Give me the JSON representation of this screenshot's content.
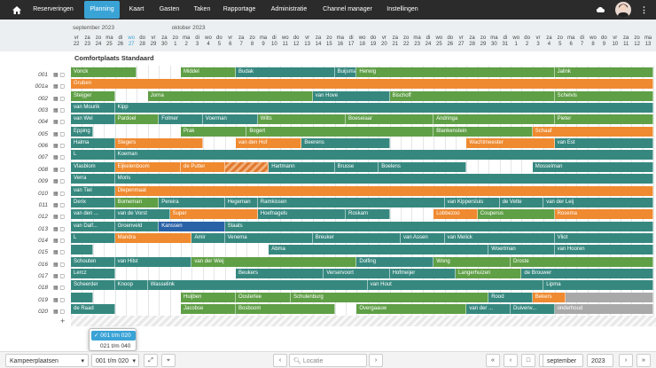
{
  "nav": {
    "items": [
      "Reserveringen",
      "Planning",
      "Kaart",
      "Gasten",
      "Taken",
      "Rapportage",
      "Administratie",
      "Channel manager",
      "Instellingen"
    ],
    "active": "Planning"
  },
  "header": {
    "months": [
      "september 2023",
      "oktober 2023"
    ],
    "days": [
      [
        "vr",
        "22"
      ],
      [
        "za",
        "23"
      ],
      [
        "zo",
        "24"
      ],
      [
        "ma",
        "25"
      ],
      [
        "di",
        "26"
      ],
      [
        "wo",
        "27"
      ],
      [
        "do",
        "28"
      ],
      [
        "vr",
        "29"
      ],
      [
        "za",
        "30"
      ],
      [
        "zo",
        "1"
      ],
      [
        "ma",
        "2"
      ],
      [
        "di",
        "3"
      ],
      [
        "wo",
        "4"
      ],
      [
        "do",
        "5"
      ],
      [
        "vr",
        "6"
      ],
      [
        "za",
        "7"
      ],
      [
        "zo",
        "8"
      ],
      [
        "ma",
        "9"
      ],
      [
        "di",
        "10"
      ],
      [
        "wo",
        "11"
      ],
      [
        "do",
        "12"
      ],
      [
        "vr",
        "13"
      ],
      [
        "za",
        "14"
      ],
      [
        "zo",
        "15"
      ],
      [
        "ma",
        "16"
      ],
      [
        "di",
        "17"
      ],
      [
        "wo",
        "18"
      ],
      [
        "do",
        "19"
      ],
      [
        "vr",
        "20"
      ],
      [
        "za",
        "21"
      ],
      [
        "zo",
        "22"
      ],
      [
        "ma",
        "23"
      ],
      [
        "di",
        "24"
      ],
      [
        "wo",
        "25"
      ],
      [
        "do",
        "26"
      ],
      [
        "vr",
        "27"
      ],
      [
        "za",
        "28"
      ],
      [
        "zo",
        "29"
      ],
      [
        "ma",
        "30"
      ],
      [
        "di",
        "31"
      ],
      [
        "wo",
        "1"
      ],
      [
        "do",
        "2"
      ],
      [
        "vr",
        "3"
      ],
      [
        "za",
        "4"
      ],
      [
        "zo",
        "5"
      ],
      [
        "ma",
        "6"
      ],
      [
        "di",
        "7"
      ],
      [
        "wo",
        "8"
      ],
      [
        "do",
        "9"
      ],
      [
        "vr",
        "10"
      ],
      [
        "za",
        "11"
      ],
      [
        "zo",
        "12"
      ],
      [
        "ma",
        "13"
      ]
    ]
  },
  "section_title": "Comfortplaats Standaard",
  "rows": [
    "001",
    "001a",
    "002",
    "003",
    "004",
    "005",
    "006",
    "007",
    "008",
    "009",
    "010",
    "011",
    "012",
    "013",
    "014",
    "015",
    "016",
    "017",
    "018",
    "019",
    "020"
  ],
  "bookings": [
    {
      "r": 0,
      "s": 0,
      "e": 6,
      "t": "Vonck",
      "c": "green"
    },
    {
      "r": 0,
      "s": 10,
      "e": 15,
      "t": "Middel",
      "c": "green"
    },
    {
      "r": 0,
      "s": 15,
      "e": 24,
      "t": "Budak",
      "c": "teal"
    },
    {
      "r": 0,
      "s": 24,
      "e": 26,
      "t": "Buijsman",
      "c": "teal"
    },
    {
      "r": 0,
      "s": 26,
      "e": 44,
      "t": "Herwig",
      "c": "green"
    },
    {
      "r": 0,
      "s": 44,
      "e": 53,
      "t": "Jalink",
      "c": "green"
    },
    {
      "r": 1,
      "s": 0,
      "e": 53,
      "t": "Gruben",
      "c": "orange"
    },
    {
      "r": 2,
      "s": 0,
      "e": 4,
      "t": "Steijger",
      "c": "green"
    },
    {
      "r": 2,
      "s": 7,
      "e": 22,
      "t": "Jorna",
      "c": "green"
    },
    {
      "r": 2,
      "s": 22,
      "e": 29,
      "t": "van Hove",
      "c": "teal"
    },
    {
      "r": 2,
      "s": 29,
      "e": 44,
      "t": "Bischoff",
      "c": "green"
    },
    {
      "r": 2,
      "s": 44,
      "e": 53,
      "t": "Schelvis",
      "c": "green"
    },
    {
      "r": 3,
      "s": 0,
      "e": 4,
      "t": "van Mourik",
      "c": "teal"
    },
    {
      "r": 3,
      "s": 4,
      "e": 53,
      "t": "Kipp",
      "c": "teal"
    },
    {
      "r": 4,
      "s": 0,
      "e": 4,
      "t": "van Wel",
      "c": "teal"
    },
    {
      "r": 4,
      "s": 4,
      "e": 8,
      "t": "Pardoel",
      "c": "green"
    },
    {
      "r": 4,
      "s": 8,
      "e": 12,
      "t": "Folmer",
      "c": "teal"
    },
    {
      "r": 4,
      "s": 12,
      "e": 17,
      "t": "Voerman",
      "c": "teal"
    },
    {
      "r": 4,
      "s": 17,
      "e": 25,
      "t": "Wilts",
      "c": "green"
    },
    {
      "r": 4,
      "s": 25,
      "e": 33,
      "t": "Boeseiaar",
      "c": "green"
    },
    {
      "r": 4,
      "s": 33,
      "e": 44,
      "t": "Andringa",
      "c": "green"
    },
    {
      "r": 4,
      "s": 44,
      "e": 53,
      "t": "Pieter",
      "c": "green"
    },
    {
      "r": 5,
      "s": 0,
      "e": 2,
      "t": "Epping",
      "c": "teal"
    },
    {
      "r": 5,
      "s": 10,
      "e": 16,
      "t": "Prak",
      "c": "green"
    },
    {
      "r": 5,
      "s": 16,
      "e": 33,
      "t": "Bogert",
      "c": "green"
    },
    {
      "r": 5,
      "s": 33,
      "e": 42,
      "t": "Blankenstein",
      "c": "green"
    },
    {
      "r": 5,
      "s": 42,
      "e": 53,
      "t": "Schaaf",
      "c": "orange"
    },
    {
      "r": 6,
      "s": 0,
      "e": 4,
      "t": "Halma",
      "c": "teal"
    },
    {
      "r": 6,
      "s": 4,
      "e": 12,
      "t": "Stegers",
      "c": "orange"
    },
    {
      "r": 6,
      "s": 15,
      "e": 21,
      "t": "van den Hof",
      "c": "orange"
    },
    {
      "r": 6,
      "s": 21,
      "e": 29,
      "t": "Beerens",
      "c": "teal"
    },
    {
      "r": 6,
      "s": 36,
      "e": 44,
      "t": "Wachtmeester",
      "c": "orange"
    },
    {
      "r": 6,
      "s": 44,
      "e": 53,
      "t": "van Est",
      "c": "teal"
    },
    {
      "r": 7,
      "s": 0,
      "e": 4,
      "t": "L",
      "c": "teal"
    },
    {
      "r": 7,
      "s": 4,
      "e": 53,
      "t": "Koeman",
      "c": "teal"
    },
    {
      "r": 8,
      "s": 0,
      "e": 4,
      "t": "Vlasblom",
      "c": "teal"
    },
    {
      "r": 8,
      "s": 4,
      "e": 10,
      "t": "Eijkelenboom",
      "c": "orange"
    },
    {
      "r": 8,
      "s": 10,
      "e": 14,
      "t": "de Putter",
      "c": "orange"
    },
    {
      "r": 8,
      "s": 14,
      "e": 18,
      "t": "",
      "c": "hatch"
    },
    {
      "r": 8,
      "s": 18,
      "e": 24,
      "t": "Hartmann",
      "c": "teal"
    },
    {
      "r": 8,
      "s": 24,
      "e": 28,
      "t": "Brusse",
      "c": "teal"
    },
    {
      "r": 8,
      "s": 28,
      "e": 36,
      "t": "Boelens",
      "c": "teal"
    },
    {
      "r": 8,
      "s": 42,
      "e": 53,
      "t": "Mosselman",
      "c": "teal"
    },
    {
      "r": 9,
      "s": 0,
      "e": 4,
      "t": "Verra",
      "c": "teal"
    },
    {
      "r": 9,
      "s": 4,
      "e": 53,
      "t": "Moris",
      "c": "teal"
    },
    {
      "r": 10,
      "s": 0,
      "e": 4,
      "t": "van Tiel",
      "c": "teal"
    },
    {
      "r": 10,
      "s": 4,
      "e": 53,
      "t": "Diepenmaat",
      "c": "orange"
    },
    {
      "r": 11,
      "s": 0,
      "e": 4,
      "t": "Derix",
      "c": "teal"
    },
    {
      "r": 11,
      "s": 4,
      "e": 8,
      "t": "Bomeman",
      "c": "green"
    },
    {
      "r": 11,
      "s": 8,
      "e": 14,
      "t": "Pereira",
      "c": "teal"
    },
    {
      "r": 11,
      "s": 14,
      "e": 17,
      "t": "Hegeman",
      "c": "teal"
    },
    {
      "r": 11,
      "s": 17,
      "e": 34,
      "t": "Ramkissen",
      "c": "teal"
    },
    {
      "r": 11,
      "s": 34,
      "e": 39,
      "t": "van Kippersluis",
      "c": "teal"
    },
    {
      "r": 11,
      "s": 39,
      "e": 43,
      "t": "de Vette",
      "c": "teal"
    },
    {
      "r": 11,
      "s": 43,
      "e": 53,
      "t": "van der Leij",
      "c": "teal"
    },
    {
      "r": 12,
      "s": 0,
      "e": 4,
      "t": "van den ...",
      "c": "teal"
    },
    {
      "r": 12,
      "s": 4,
      "e": 9,
      "t": "van de Vorst",
      "c": "teal"
    },
    {
      "r": 12,
      "s": 9,
      "e": 17,
      "t": "Super",
      "c": "orange"
    },
    {
      "r": 12,
      "s": 17,
      "e": 25,
      "t": "Hoefnagels",
      "c": "teal"
    },
    {
      "r": 12,
      "s": 25,
      "e": 29,
      "t": "Roskam",
      "c": "teal"
    },
    {
      "r": 12,
      "s": 33,
      "e": 37,
      "t": "Lobbezoo",
      "c": "orange"
    },
    {
      "r": 12,
      "s": 37,
      "e": 44,
      "t": "Couperus",
      "c": "green"
    },
    {
      "r": 12,
      "s": 44,
      "e": 53,
      "t": "Rosema",
      "c": "orange"
    },
    {
      "r": 13,
      "s": 0,
      "e": 4,
      "t": "van Dalf...",
      "c": "teal"
    },
    {
      "r": 13,
      "s": 4,
      "e": 8,
      "t": "Groenveld",
      "c": "teal"
    },
    {
      "r": 13,
      "s": 8,
      "e": 14,
      "t": "Kanssen",
      "c": "blue"
    },
    {
      "r": 13,
      "s": 14,
      "e": 53,
      "t": "Staats",
      "c": "teal"
    },
    {
      "r": 14,
      "s": 0,
      "e": 4,
      "t": "L",
      "c": "teal"
    },
    {
      "r": 14,
      "s": 4,
      "e": 11,
      "t": "Mandra",
      "c": "orange"
    },
    {
      "r": 14,
      "s": 11,
      "e": 14,
      "t": "Amir",
      "c": "teal"
    },
    {
      "r": 14,
      "s": 14,
      "e": 22,
      "t": "Venema",
      "c": "teal"
    },
    {
      "r": 14,
      "s": 22,
      "e": 30,
      "t": "Breuker",
      "c": "teal"
    },
    {
      "r": 14,
      "s": 30,
      "e": 34,
      "t": "van Assen",
      "c": "teal"
    },
    {
      "r": 14,
      "s": 34,
      "e": 44,
      "t": "van Melick",
      "c": "teal"
    },
    {
      "r": 14,
      "s": 44,
      "e": 53,
      "t": "Vliot",
      "c": "teal"
    },
    {
      "r": 15,
      "s": 0,
      "e": 2,
      "t": "",
      "c": "teal"
    },
    {
      "r": 15,
      "s": 18,
      "e": 38,
      "t": "Abma",
      "c": "teal"
    },
    {
      "r": 15,
      "s": 38,
      "e": 44,
      "t": "Woertman",
      "c": "teal"
    },
    {
      "r": 15,
      "s": 44,
      "e": 53,
      "t": "van Hooren",
      "c": "teal"
    },
    {
      "r": 16,
      "s": 0,
      "e": 4,
      "t": "Schouten",
      "c": "teal"
    },
    {
      "r": 16,
      "s": 4,
      "e": 11,
      "t": "van Hilst",
      "c": "teal"
    },
    {
      "r": 16,
      "s": 11,
      "e": 26,
      "t": "van der Weij",
      "c": "green"
    },
    {
      "r": 16,
      "s": 26,
      "e": 33,
      "t": "Dolfing",
      "c": "teal"
    },
    {
      "r": 16,
      "s": 33,
      "e": 40,
      "t": "Wong",
      "c": "green"
    },
    {
      "r": 16,
      "s": 40,
      "e": 53,
      "t": "Droste",
      "c": "green"
    },
    {
      "r": 17,
      "s": 0,
      "e": 4,
      "t": "Lercz",
      "c": "teal"
    },
    {
      "r": 17,
      "s": 15,
      "e": 23,
      "t": "Beukers",
      "c": "teal"
    },
    {
      "r": 17,
      "s": 23,
      "e": 29,
      "t": "Verservoort",
      "c": "teal"
    },
    {
      "r": 17,
      "s": 29,
      "e": 35,
      "t": "Hofmeijer",
      "c": "teal"
    },
    {
      "r": 17,
      "s": 35,
      "e": 41,
      "t": "Langerhuizen",
      "c": "green"
    },
    {
      "r": 17,
      "s": 41,
      "e": 53,
      "t": "de Brouwer",
      "c": "teal"
    },
    {
      "r": 18,
      "s": 0,
      "e": 4,
      "t": "Scheerder",
      "c": "teal"
    },
    {
      "r": 18,
      "s": 4,
      "e": 7,
      "t": "Knoop",
      "c": "teal"
    },
    {
      "r": 18,
      "s": 7,
      "e": 27,
      "t": "Wasselink",
      "c": "teal"
    },
    {
      "r": 18,
      "s": 27,
      "e": 43,
      "t": "van Hout",
      "c": "teal"
    },
    {
      "r": 18,
      "s": 43,
      "e": 53,
      "t": "Lipma",
      "c": "teal"
    },
    {
      "r": 19,
      "s": 0,
      "e": 2,
      "t": "",
      "c": "teal"
    },
    {
      "r": 19,
      "s": 10,
      "e": 15,
      "t": "Huijben",
      "c": "green"
    },
    {
      "r": 19,
      "s": 15,
      "e": 20,
      "t": "Oosterlee",
      "c": "green"
    },
    {
      "r": 19,
      "s": 20,
      "e": 38,
      "t": "Schulenburg",
      "c": "green"
    },
    {
      "r": 19,
      "s": 38,
      "e": 42,
      "t": "Rood",
      "c": "teal"
    },
    {
      "r": 19,
      "s": 42,
      "e": 45,
      "t": "Bekers",
      "c": "orange"
    },
    {
      "r": 19,
      "s": 45,
      "e": 53,
      "t": "",
      "c": "grey"
    },
    {
      "r": 20,
      "s": 0,
      "e": 4,
      "t": "de Raad",
      "c": "teal"
    },
    {
      "r": 20,
      "s": 10,
      "e": 15,
      "t": "Jacobse",
      "c": "green"
    },
    {
      "r": 20,
      "s": 15,
      "e": 24,
      "t": "Bosboom",
      "c": "green"
    },
    {
      "r": 20,
      "s": 26,
      "e": 36,
      "t": "Overgaauw",
      "c": "green"
    },
    {
      "r": 20,
      "s": 36,
      "e": 40,
      "t": "van der ...",
      "c": "teal"
    },
    {
      "r": 20,
      "s": 40,
      "e": 44,
      "t": "Duivenv...",
      "c": "teal"
    },
    {
      "r": 20,
      "s": 44,
      "e": 53,
      "t": "onderhoud",
      "c": "grey"
    }
  ],
  "popup": {
    "items": [
      "001 t/m 020",
      "021 t/m 040"
    ]
  },
  "bottom": {
    "area_select": "Kampeerplaatsen",
    "range_select": "001 t/m 020",
    "location_placeholder": "Locatie",
    "month_select": "september",
    "year_select": "2023"
  },
  "colors": {
    "nav": "#2b2b2b",
    "active": "#3aa3d6",
    "green": "#5f9f46",
    "teal": "#36887f",
    "orange": "#ef8a30",
    "blue": "#2a62a8"
  }
}
